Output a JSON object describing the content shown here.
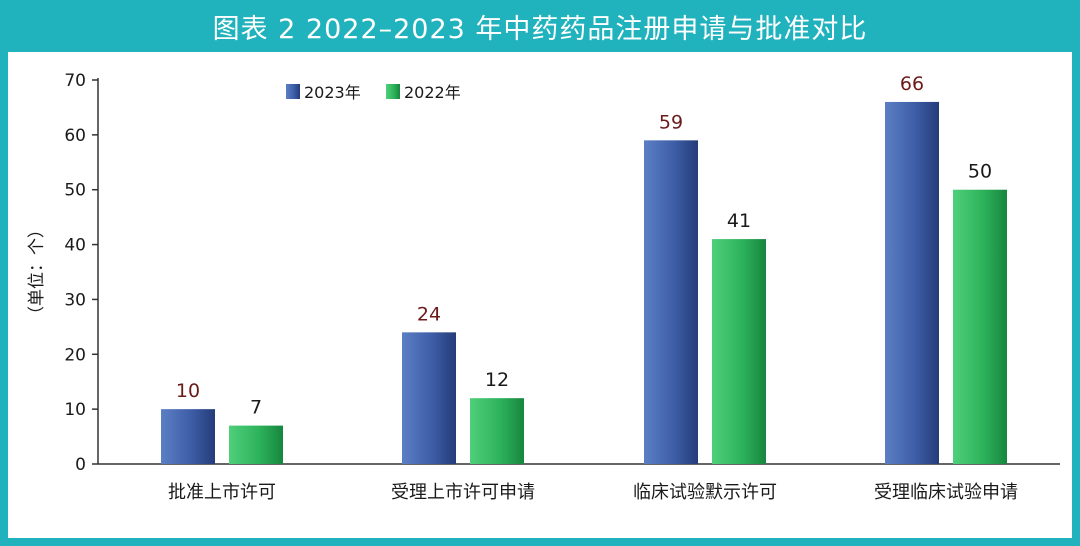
{
  "chart_data": {
    "type": "bar",
    "title": "图表 2 2022–2023 年中药药品注册申请与批准对比",
    "ylabel": "（单位：个）",
    "xlabel": "",
    "categories": [
      "批准上市许可",
      "受理上市许可申请",
      "临床试验默示许可",
      "受理临床试验申请"
    ],
    "series": [
      {
        "name": "2023年",
        "values": [
          10,
          24,
          59,
          66
        ]
      },
      {
        "name": "2022年",
        "values": [
          7,
          12,
          41,
          50
        ]
      }
    ],
    "ylim": [
      0,
      70
    ],
    "yticks": [
      0,
      10,
      20,
      30,
      40,
      50,
      60,
      70
    ],
    "grid": false,
    "legend": "top-left",
    "colors": {
      "2023": "#3e5ea8",
      "2022": "#2db35c",
      "frame": "#20b2bd",
      "label_2023": "#6b1a1a",
      "label_2022": "#1a1a1a"
    }
  }
}
